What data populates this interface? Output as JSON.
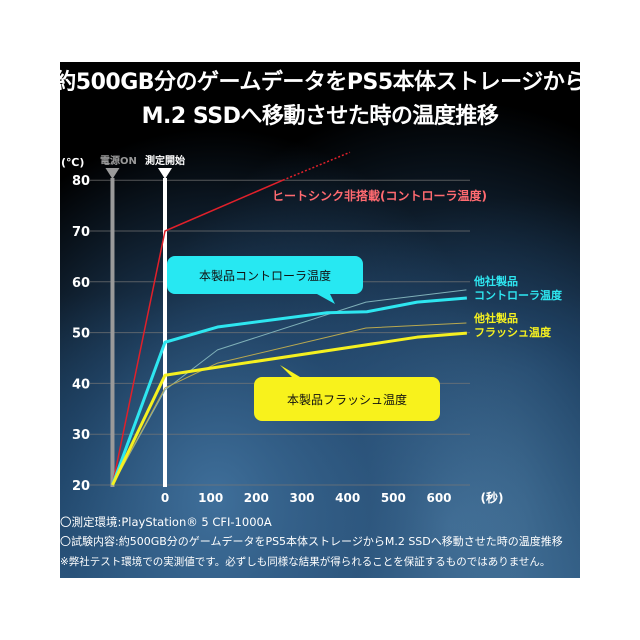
{
  "title_line1": "約500GB分のゲームデータをPS5本体ストレージから",
  "title_line2": "M.2 SSDへ移動させた時の温度推移",
  "notes": [
    "〇測定環境:PlayStation® 5 CFI-1000A",
    "〇試験内容:約500GB分のゲームデータをPS5本体ストレージからM.2 SSDへ移動させた時の温度推移",
    "※弊社テスト環境での実測値です。必ずしも同様な結果が得られることを保証するものではありません。"
  ],
  "chart_data": {
    "type": "line",
    "title": "約500GB分のゲームデータをPS5本体ストレージからM.2 SSDへ移動させた時の温度推移",
    "ylabel": "(℃)",
    "xlabel": "(秒)",
    "ylim": [
      20,
      80
    ],
    "xlim": [
      -115,
      680
    ],
    "yticks": [
      20,
      30,
      40,
      50,
      60,
      70,
      80
    ],
    "xticks": [
      0,
      100,
      200,
      300,
      400,
      500,
      600
    ],
    "grid": true,
    "markers": [
      {
        "label": "電源ON",
        "x": -115,
        "color": "#9a9a9a"
      },
      {
        "label": "測定開始",
        "x": 0,
        "color": "#ffffff"
      }
    ],
    "series": [
      {
        "name": "ヒートシンク非搭載(コントローラ温度)",
        "color": "#e0202a",
        "width": 1.5,
        "x": [
          -115,
          0,
          258
        ],
        "y": [
          20,
          70,
          80
        ],
        "dashed_ext": {
          "x": [
            258,
            405
          ],
          "y": [
            80,
            85.5
          ]
        }
      },
      {
        "name": "他社製品 コントローラ温度",
        "color": "#7fb0b8",
        "width": 1,
        "x": [
          -115,
          0,
          115,
          440,
          660
        ],
        "y": [
          20,
          38.7,
          46.6,
          56,
          58.4
        ]
      },
      {
        "name": "他社製品 フラッシュ温度",
        "color": "#b8a850",
        "width": 1,
        "x": [
          -115,
          0,
          115,
          440,
          660
        ],
        "y": [
          20,
          39.1,
          44,
          50.9,
          51.9
        ]
      },
      {
        "name": "本製品コントローラ温度",
        "color": "#2ee6f0",
        "width": 3,
        "x": [
          -115,
          0,
          115,
          355,
          442,
          552,
          661
        ],
        "y": [
          20,
          48.1,
          51.1,
          53.9,
          54.1,
          56,
          56.8
        ]
      },
      {
        "name": "本製品フラッシュ温度",
        "color": "#f5f020",
        "width": 3,
        "x": [
          -115,
          0,
          115,
          442,
          552,
          661
        ],
        "y": [
          20,
          41.6,
          43.2,
          47.6,
          49.1,
          49.9
        ]
      }
    ],
    "annotations": [
      {
        "text": "ヒートシンク非搭載(コントローラ温度)",
        "color": "#ff6a70"
      },
      {
        "text": "本製品コントローラ温度",
        "box": "#27e8f2"
      },
      {
        "text": "本製品フラッシュ温度",
        "box": "#f8f21c"
      },
      {
        "text": "他社製品",
        "text2": "コントローラ温度",
        "color": "#2ee6f0"
      },
      {
        "text": "他社製品",
        "text2": "フラッシュ温度",
        "color": "#f5f020"
      }
    ]
  }
}
